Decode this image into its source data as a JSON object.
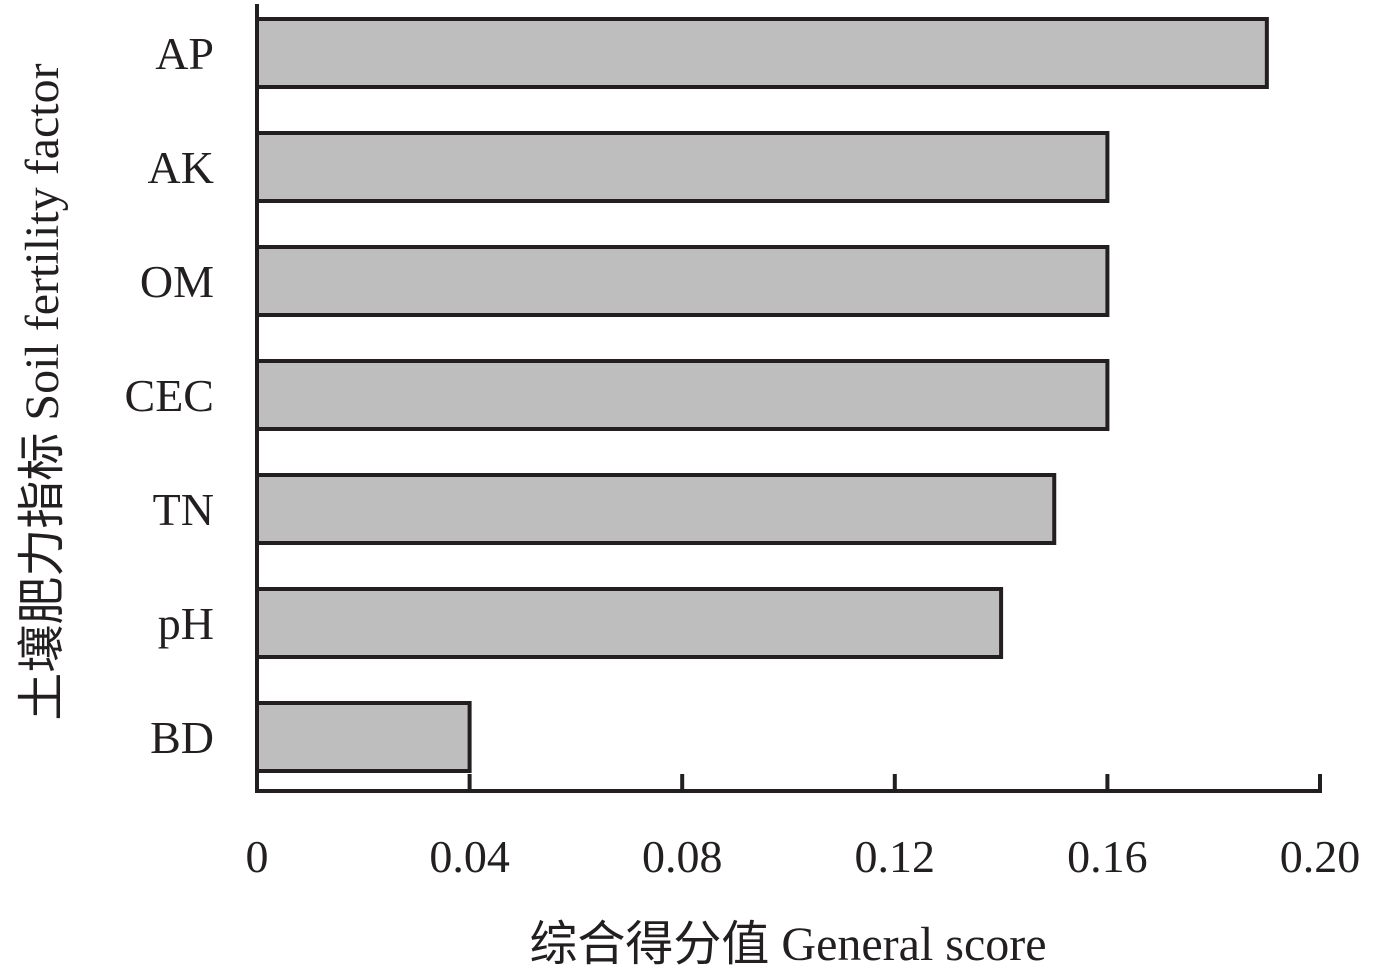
{
  "chart_data": {
    "type": "bar",
    "orientation": "horizontal",
    "categories": [
      "AP",
      "AK",
      "OM",
      "CEC",
      "TN",
      "pH",
      "BD"
    ],
    "values": [
      0.19,
      0.16,
      0.16,
      0.16,
      0.15,
      0.14,
      0.04
    ],
    "xlabel": "综合得分值 General score",
    "ylabel": "土壤肥力指标 Soil fertility factor",
    "xlim": [
      0,
      0.2
    ],
    "xticks": [
      0,
      0.04,
      0.08,
      0.12,
      0.16,
      0.2
    ],
    "xtick_labels": [
      "0",
      "0.04",
      "0.08",
      "0.12",
      "0.16",
      "0.20"
    ],
    "grid": false,
    "legend": "none",
    "bar_color": "#bebebe",
    "edge_color": "#231f20"
  }
}
